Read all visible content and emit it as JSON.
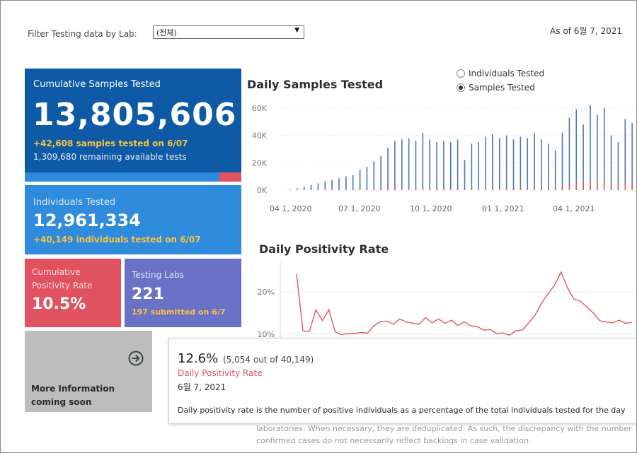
{
  "filter": {
    "label": "Filter Testing data by Lab:",
    "selected": "(전체)"
  },
  "as_of": "As of 6월 7, 2021",
  "cards": {
    "cumulative_samples": {
      "title": "Cumulative Samples Tested",
      "value": "13,805,606",
      "sub1": "+42,608 samples tested on 6/07",
      "sub2": "1,309,680 remaining available tests",
      "tested_fraction": 0.9
    },
    "individuals": {
      "title": "Individuals Tested",
      "value": "12,961,334",
      "sub": "+40,149  individuals  tested on 6/07"
    },
    "positivity": {
      "title": "Cumulative Positivity Rate",
      "value": "10.5%"
    },
    "labs": {
      "title": "Testing Labs",
      "value": "221",
      "sub": "197 submitted on 6/7"
    },
    "more_info": {
      "text": "More Information coming soon"
    }
  },
  "daily_samples": {
    "title": "Daily Samples Tested",
    "radio": {
      "options": [
        "Individuals Tested",
        "Samples Tested"
      ],
      "selected": "Samples Tested"
    }
  },
  "daily_positivity": {
    "title": "Daily Positivity Rate"
  },
  "tooltip": {
    "pct": "12.6%",
    "detail": "(5,054 out of  40,149)",
    "metric": "Daily Positivity Rate",
    "date": "6월 7, 2021",
    "desc": "Daily positivity rate is the number of positive individuals as a percentage of the total individuals tested for the day"
  },
  "footnote": {
    "line1": "laboratories. When necessary, they are deduplicated. As such, the discrepancy with the number",
    "line2": "confirmed cases do not necessarily reflect backlogs in case validation."
  },
  "colors": {
    "blue_dark": "#0f5aa6",
    "blue": "#2f8bdc",
    "red": "#e0525f",
    "purple": "#6a72c7",
    "gold": "#f6c343",
    "bar_blue": "#4e79a7",
    "bar_red": "#e15759"
  },
  "chart_data": [
    {
      "type": "bar",
      "title": "Daily Samples Tested",
      "xlabel": "",
      "ylabel": "",
      "ylim": [
        0,
        62000
      ],
      "yticks": [
        "0K",
        "20K",
        "40K",
        "60K"
      ],
      "xticks": [
        "04 1, 2020",
        "07 1, 2020",
        "10 1, 2020",
        "01 1, 2021",
        "04 1, 2021"
      ],
      "series": [
        {
          "name": "Samples Tested",
          "values": [
            500,
            1200,
            2500,
            3800,
            5000,
            6200,
            7400,
            8600,
            10000,
            11000,
            15000,
            17000,
            21000,
            25000,
            31000,
            36000,
            37000,
            38000,
            36000,
            42000,
            37000,
            35000,
            36000,
            35000,
            37000,
            22000,
            34000,
            35000,
            39000,
            41000,
            38000,
            40000,
            37000,
            39000,
            38000,
            42000,
            37000,
            34000,
            29000,
            42000,
            53000,
            59000,
            48000,
            62000,
            55000,
            60000,
            40000,
            35000,
            52000,
            49000
          ]
        },
        {
          "name": "Positive",
          "values": [
            0,
            0,
            0,
            0,
            0,
            0,
            100,
            200,
            300,
            400,
            1200,
            1400,
            1600,
            1800,
            2200,
            2400,
            2000,
            1800,
            1500,
            1700,
            1400,
            1300,
            1200,
            1100,
            1200,
            800,
            1000,
            1100,
            1200,
            1300,
            1200,
            1100,
            1000,
            1100,
            1200,
            1400,
            1300,
            1600,
            2000,
            3200,
            5200,
            6500,
            6200,
            7200,
            6800,
            6100,
            5400,
            4800,
            5200,
            5000
          ]
        }
      ]
    },
    {
      "type": "line",
      "title": "Daily Positivity Rate",
      "ylim": [
        10,
        24
      ],
      "yticks": [
        "10%",
        "20%"
      ],
      "series": [
        {
          "name": "Daily Positivity Rate",
          "values": [
            24,
            11,
            10.5,
            16,
            13,
            16,
            10.3,
            10.1,
            10,
            10.4,
            10.2,
            10.5,
            11.8,
            13.2,
            12.9,
            12.6,
            13.4,
            13.1,
            12.4,
            12.6,
            13.7,
            12.9,
            13.4,
            12.8,
            13.1,
            12.3,
            12.7,
            12.2,
            11.6,
            11.2,
            10.9,
            10.4,
            10.1,
            10,
            10.6,
            11.2,
            12.5,
            14.8,
            17.2,
            19.8,
            21.4,
            24.9,
            20.7,
            18.5,
            17.6,
            16.6,
            14.8,
            13.4,
            12.7,
            12.9,
            13.1,
            12.8,
            12.6
          ]
        }
      ]
    }
  ]
}
